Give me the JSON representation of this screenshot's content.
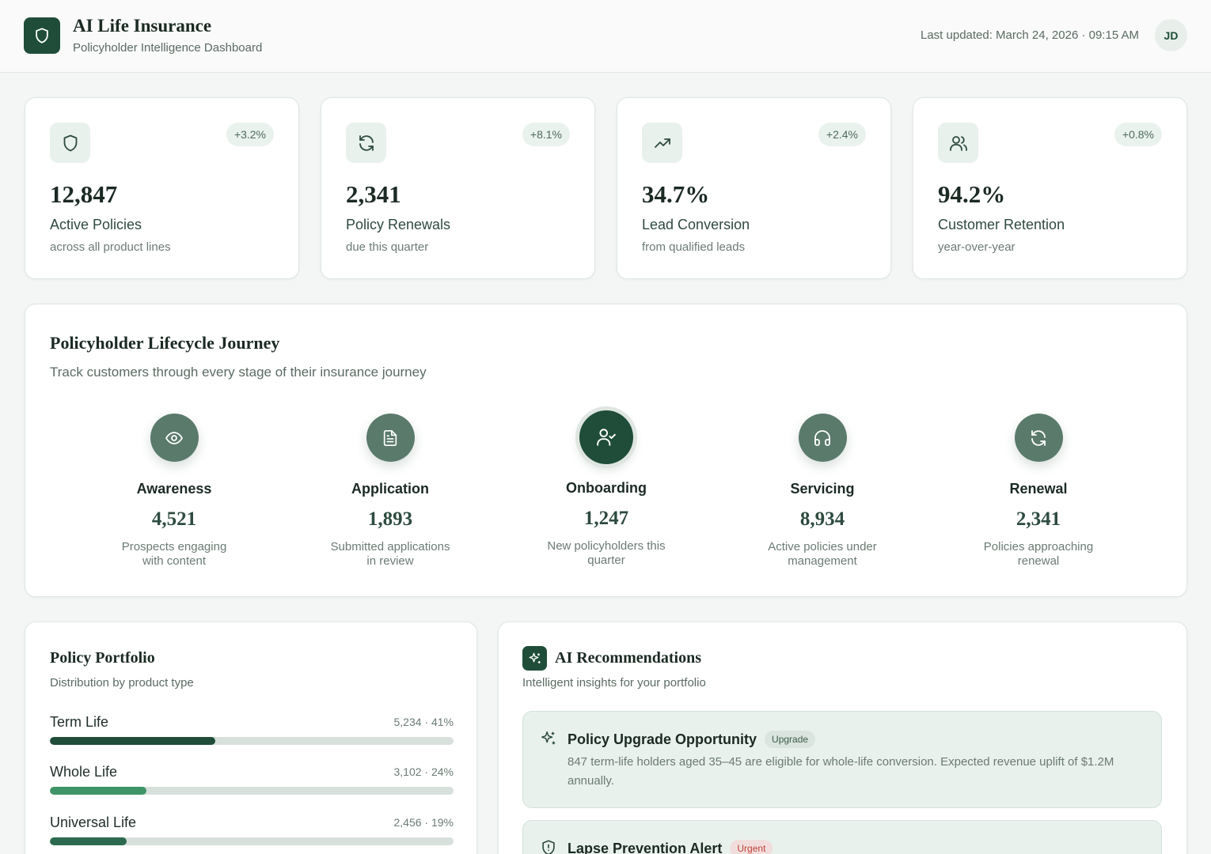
{
  "header": {
    "title": "AI Life Insurance",
    "subtitle": "Policyholder Intelligence Dashboard",
    "last_updated": "Last updated: March 24, 2026 · 09:15 AM",
    "avatar_initials": "JD",
    "logo_icon": "shield-icon"
  },
  "kpis": [
    {
      "icon": "shield-icon",
      "delta": "+3.2%",
      "value": "12,847",
      "label": "Active Policies",
      "sub": "across all product lines"
    },
    {
      "icon": "refresh-icon",
      "delta": "+8.1%",
      "value": "2,341",
      "label": "Policy Renewals",
      "sub": "due this quarter"
    },
    {
      "icon": "trending-up-icon",
      "delta": "+2.4%",
      "value": "34.7%",
      "label": "Lead Conversion",
      "sub": "from qualified leads"
    },
    {
      "icon": "users-icon",
      "delta": "+0.8%",
      "value": "94.2%",
      "label": "Customer Retention",
      "sub": "year-over-year"
    }
  ],
  "lifecycle": {
    "title": "Policyholder Lifecycle Journey",
    "subtitle": "Track customers through every stage of their insurance journey",
    "active_stage": "Onboarding",
    "stages": [
      {
        "icon": "eye-icon",
        "name": "Awareness",
        "value": "4,521",
        "desc": "Prospects engaging with content"
      },
      {
        "icon": "document-icon",
        "name": "Application",
        "value": "1,893",
        "desc": "Submitted applications in review"
      },
      {
        "icon": "user-check-icon",
        "name": "Onboarding",
        "value": "1,247",
        "desc": "New policyholders this quarter"
      },
      {
        "icon": "headphones-icon",
        "name": "Servicing",
        "value": "8,934",
        "desc": "Active policies under management"
      },
      {
        "icon": "refresh-icon",
        "name": "Renewal",
        "value": "2,341",
        "desc": "Policies approaching renewal"
      }
    ]
  },
  "portfolio": {
    "title": "Policy Portfolio",
    "subtitle": "Distribution by product type",
    "items": [
      {
        "name": "Term Life",
        "value": "5,234 · 41%",
        "share": 0.41,
        "color": "#1f4d3a"
      },
      {
        "name": "Whole Life",
        "value": "3,102 · 24%",
        "share": 0.24,
        "color": "#3f9467"
      },
      {
        "name": "Universal Life",
        "value": "2,456 · 19%",
        "share": 0.19,
        "color": "#2b6a4e"
      }
    ]
  },
  "ai": {
    "title": "AI Recommendations",
    "subtitle": "Intelligent insights for your portfolio",
    "icon": "sparkle-icon",
    "recommendations": [
      {
        "icon": "sparkle-icon",
        "title": "Policy Upgrade Opportunity",
        "tag": "Upgrade",
        "body": "847 term-life holders aged 35–45 are eligible for whole-life conversion. Expected revenue uplift of $1.2M annually."
      },
      {
        "icon": "shield-alert-icon",
        "title": "Lapse Prevention Alert",
        "tag": "Urgent",
        "body": ""
      }
    ]
  },
  "colors": {
    "brand": "#1f4d3a",
    "stage": "#5a7a6c",
    "background": "#f3f6f4",
    "urgent": "#c0443b"
  }
}
